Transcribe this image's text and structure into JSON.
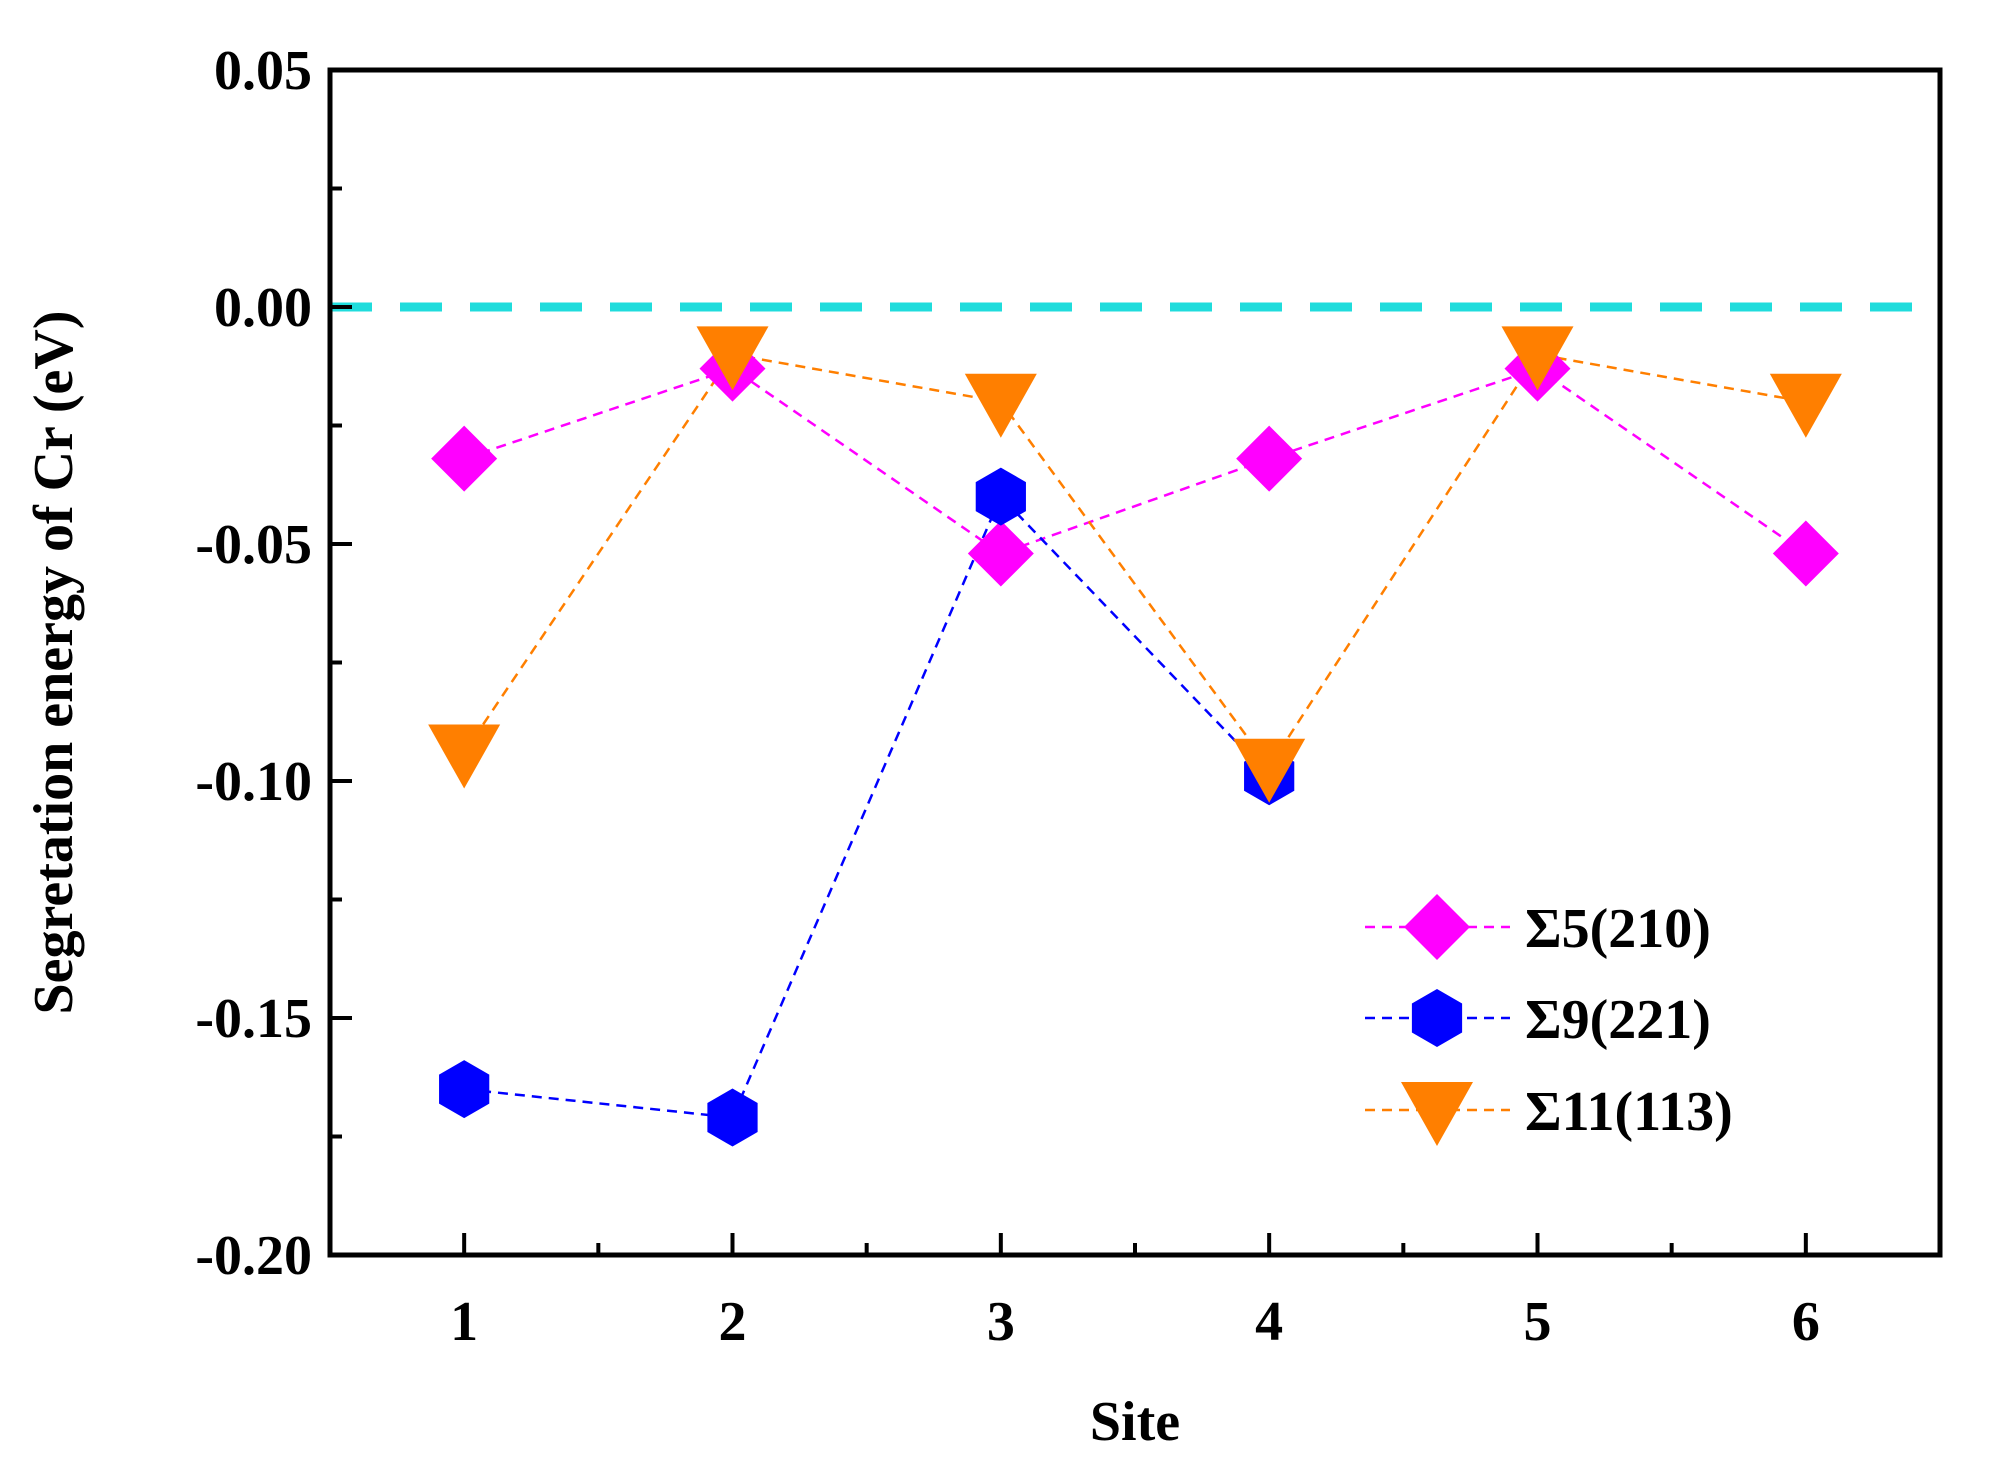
{
  "chart_data": {
    "type": "line",
    "xlabel": "Site",
    "ylabel": "Segretation energy of Cr (eV)",
    "categories": [
      1,
      2,
      3,
      4,
      5,
      6
    ],
    "x_tick_labels": [
      "1",
      "2",
      "3",
      "4",
      "5",
      "6"
    ],
    "xlim": [
      0.5,
      6.5
    ],
    "ylim": [
      -0.2,
      0.05
    ],
    "y_ticks": [
      -0.2,
      -0.15,
      -0.1,
      -0.05,
      0.0,
      0.05
    ],
    "y_tick_labels": [
      "-0.20",
      "-0.15",
      "-0.10",
      "-0.05",
      "0.00",
      "0.05"
    ],
    "y_minor_ticks": [
      -0.175,
      -0.125,
      -0.075,
      -0.025,
      0.025
    ],
    "reference_line": {
      "y": 0.0,
      "color": "#1fdcdc",
      "style": "dashed"
    },
    "legend_position": "bottom-right",
    "series": [
      {
        "name": "Σ5(210)",
        "color": "#ff00ff",
        "marker": "diamond",
        "x": [
          1,
          2,
          3,
          4,
          5,
          6
        ],
        "values": [
          -0.032,
          -0.013,
          -0.052,
          -0.032,
          -0.013,
          -0.052
        ]
      },
      {
        "name": "Σ9(221)",
        "color": "#0000ff",
        "marker": "hexagon",
        "x": [
          1,
          2,
          3,
          4
        ],
        "values": [
          -0.165,
          -0.171,
          -0.04,
          -0.099
        ]
      },
      {
        "name": "Σ11(113)",
        "color": "#ff7f00",
        "marker": "triangle-down",
        "x": [
          1,
          2,
          3,
          4,
          5,
          6
        ],
        "values": [
          -0.094,
          -0.01,
          -0.02,
          -0.097,
          -0.01,
          -0.02
        ]
      }
    ]
  }
}
